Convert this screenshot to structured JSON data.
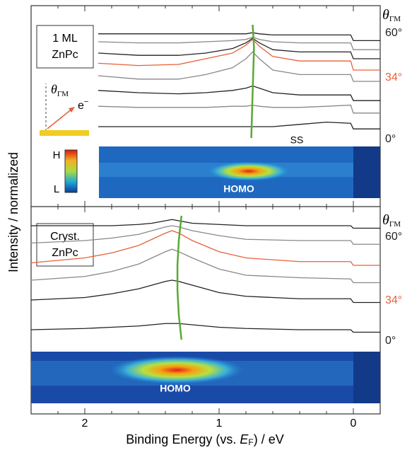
{
  "figure": {
    "ylabel": "Intensity / normalized",
    "xlabel_parts": [
      "Binding Energy (vs. ",
      "E",
      "F",
      ") / eV"
    ]
  },
  "chart_data": [
    {
      "type": "line",
      "panel_label": [
        "1 ML",
        "ZnPc"
      ],
      "theta": "θ",
      "theta_sub": "ΓM",
      "electron": "e",
      "electron_sup": "−",
      "colorbar_high": "H",
      "colorbar_low": "L",
      "feature_label": "SS",
      "map_label": "HOMO",
      "angle_labels": [
        "60°",
        "34°",
        "0°"
      ],
      "xlim": [
        2.4,
        -0.2
      ],
      "xticks": [
        2,
        1,
        0
      ],
      "xminorticks": [
        2.2,
        1.8,
        1.6,
        1.4,
        1.2,
        0.8,
        0.6,
        0.4,
        0.2
      ],
      "ylim": [
        0,
        100
      ],
      "x": [
        1.9,
        1.6,
        1.3,
        1.1,
        0.9,
        0.8,
        0.75,
        0.7,
        0.6,
        0.4,
        0.2,
        0.02,
        0,
        -0.2
      ],
      "series": [
        {
          "color": "#222222",
          "values": [
            92,
            92,
            92,
            92,
            92,
            92,
            93,
            92,
            91,
            91,
            91,
            91,
            86,
            86
          ]
        },
        {
          "color": "#888888",
          "values": [
            85,
            84,
            84,
            85,
            86,
            87,
            89,
            87,
            85,
            84,
            84,
            84,
            78,
            78
          ]
        },
        {
          "color": "#222222",
          "values": [
            75,
            73,
            73,
            75,
            79,
            84,
            88,
            84,
            78,
            76,
            76,
            76,
            70,
            70
          ]
        },
        {
          "color": "#e8603a",
          "values": [
            66,
            64,
            65,
            70,
            75,
            82,
            87,
            81,
            72,
            68,
            68,
            68,
            60,
            60
          ]
        },
        {
          "color": "#888888",
          "values": [
            55,
            52,
            52,
            56,
            62,
            70,
            76,
            70,
            60,
            56,
            56,
            56,
            50,
            50
          ]
        },
        {
          "color": "#222222",
          "values": [
            42,
            40,
            39,
            40,
            42,
            44,
            46,
            44,
            40,
            38,
            38,
            38,
            33,
            33
          ]
        },
        {
          "color": "#888888",
          "values": [
            28,
            27,
            27,
            27,
            28,
            28,
            29,
            28,
            27,
            27,
            28,
            29,
            22,
            22
          ]
        },
        {
          "color": "#222222",
          "values": [
            10,
            10,
            10,
            10,
            10,
            10,
            10,
            10,
            10,
            12,
            14,
            13,
            8,
            8
          ]
        }
      ],
      "dispersion": {
        "color": "#5aa832",
        "x": [
          0.76,
          0.75,
          0.74,
          0.75
        ],
        "y": [
          0,
          40,
          80,
          100
        ]
      }
    },
    {
      "type": "line",
      "panel_label": [
        "Cryst.",
        "ZnPc"
      ],
      "theta": "θ",
      "theta_sub": "ΓM",
      "map_label": "HOMO",
      "angle_labels": [
        "60°",
        "34°",
        "0°"
      ],
      "xlim": [
        2.4,
        -0.2
      ],
      "xticks": [
        2,
        1,
        0
      ],
      "xminorticks": [
        2.2,
        1.8,
        1.6,
        1.4,
        1.2,
        0.8,
        0.6,
        0.4,
        0.2
      ],
      "ylim": [
        0,
        100
      ],
      "x": [
        2.4,
        2.0,
        1.8,
        1.6,
        1.5,
        1.4,
        1.35,
        1.3,
        1.2,
        1.0,
        0.8,
        0.4,
        0.02,
        0,
        -0.2
      ],
      "series": [
        {
          "color": "#222222",
          "values": [
            92,
            92,
            92,
            93,
            94,
            96,
            97,
            96,
            94,
            93,
            92,
            92,
            92,
            90,
            90
          ]
        },
        {
          "color": "#888888",
          "values": [
            78,
            80,
            82,
            85,
            88,
            91,
            92,
            91,
            88,
            84,
            81,
            80,
            80,
            77,
            77
          ]
        },
        {
          "color": "#e8603a",
          "values": [
            62,
            66,
            70,
            76,
            81,
            86,
            88,
            86,
            80,
            71,
            66,
            63,
            63,
            60,
            60
          ]
        },
        {
          "color": "#888888",
          "values": [
            48,
            51,
            55,
            61,
            66,
            71,
            73,
            71,
            66,
            57,
            52,
            50,
            49,
            46,
            46
          ]
        },
        {
          "color": "#222222",
          "values": [
            32,
            34,
            37,
            41,
            44,
            47,
            48,
            47,
            44,
            38,
            35,
            33,
            33,
            30,
            30
          ]
        },
        {
          "color": "#222222",
          "values": [
            8,
            9,
            10,
            11,
            12,
            13,
            13,
            13,
            12,
            10,
            9,
            8,
            8,
            6,
            6
          ]
        }
      ],
      "dispersion": {
        "color": "#5aa832",
        "x": [
          1.28,
          1.3,
          1.31,
          1.31,
          1.3,
          1.28
        ],
        "y": [
          0,
          20,
          40,
          60,
          80,
          100
        ]
      }
    }
  ]
}
